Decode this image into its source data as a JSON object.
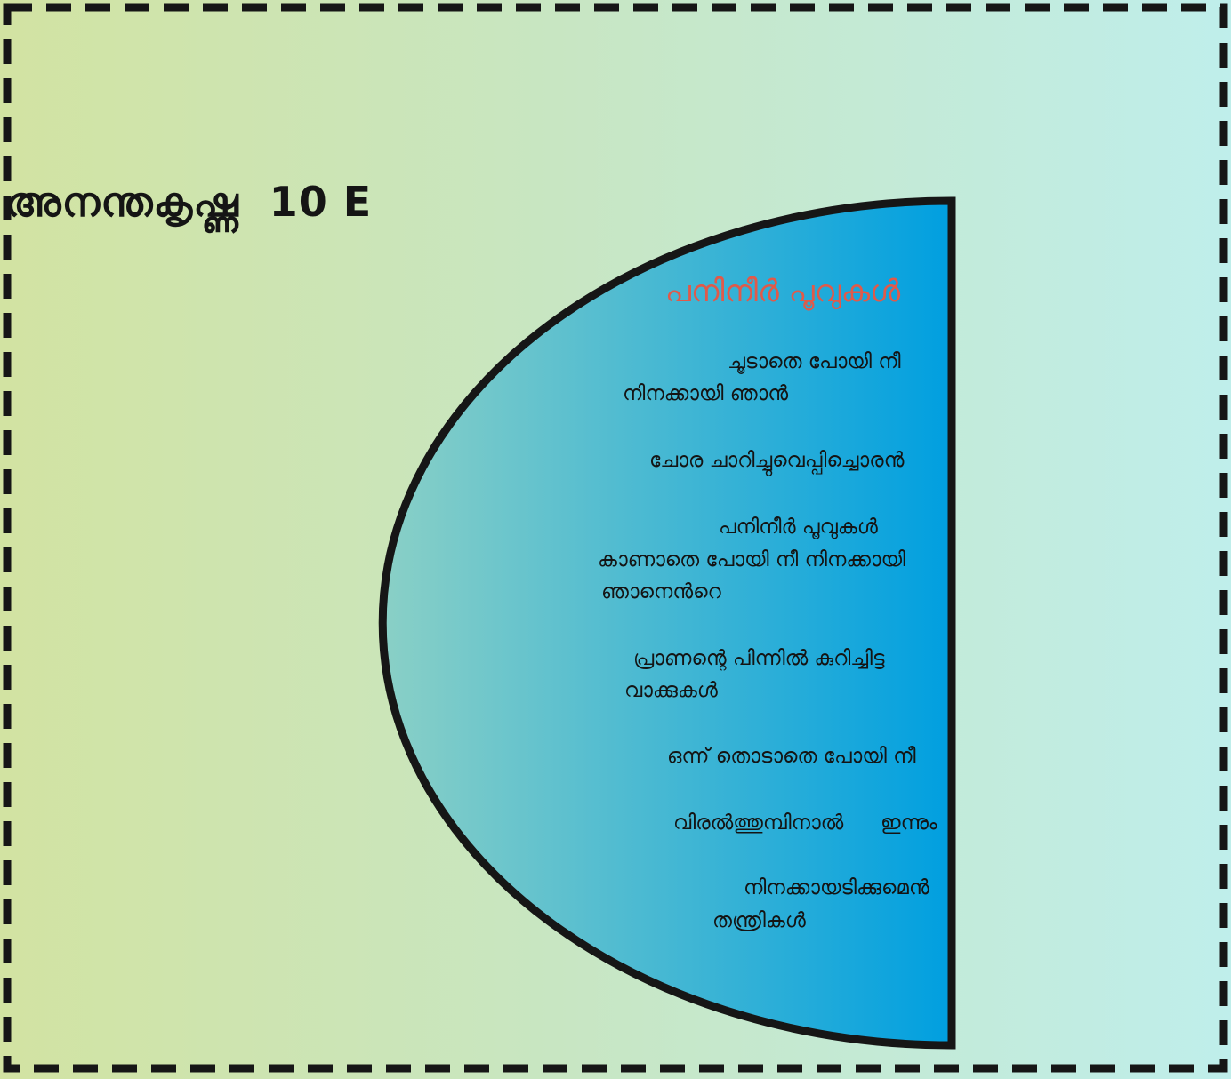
{
  "author": {
    "name": "അനന്തകൃഷ്ണ",
    "class": "10 E"
  },
  "poem": {
    "title": "പനിനീർ പൂവുകൾ",
    "lines": [
      "ചൂടാതെ പോയി നീ",
      "നിനക്കായി ഞാൻ",
      "ചോര ചാറിച്ചുവെപ്പിച്ചൊരൻ",
      "പനിനീർ പൂവുകൾ",
      "കാണാതെ പോയി നീ നിനക്കായി",
      "ഞാനെൻറെ",
      "പ്രാണന്റെ പിന്നിൽ കുറിച്ചിട്ട",
      "വാക്കുകൾ",
      "ഒന്ന് തൊടാതെ പോയി നീ",
      "വിരൽത്തുമ്പിനാൽ",
      "ഇന്നും",
      "നിനക്കായടിക്കുമെൻ",
      "തന്ത്രികൾ"
    ]
  },
  "colors": {
    "title_accent": "#e05a4a",
    "shape_gradient_start": "#8ad0c6",
    "shape_gradient_end": "#009fe0",
    "border": "#161616"
  }
}
